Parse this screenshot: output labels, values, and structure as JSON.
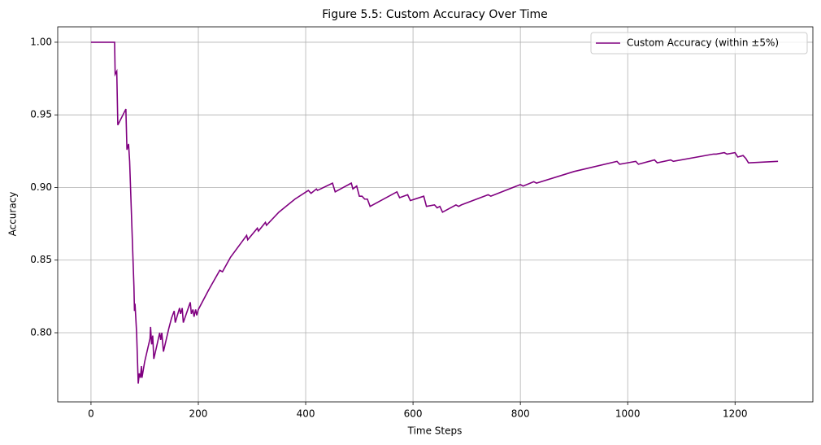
{
  "chart_data": {
    "type": "line",
    "title": "Figure 5.5: Custom Accuracy Over Time",
    "x_label": "Time Steps",
    "y_label": "Accuracy",
    "x": [
      0,
      44,
      45,
      48,
      50,
      65,
      67,
      70,
      72,
      80,
      81,
      82,
      85,
      88,
      90,
      92,
      94,
      95,
      100,
      110,
      111,
      113,
      115,
      117,
      122,
      128,
      130,
      132,
      135,
      145,
      150,
      155,
      157,
      165,
      167,
      170,
      172,
      185,
      187,
      190,
      192,
      195,
      197,
      200,
      220,
      240,
      245,
      260,
      280,
      290,
      292,
      310,
      312,
      325,
      327,
      350,
      380,
      405,
      410,
      420,
      422,
      450,
      455,
      470,
      485,
      488,
      495,
      500,
      505,
      510,
      515,
      520,
      540,
      570,
      575,
      590,
      595,
      620,
      625,
      640,
      645,
      650,
      655,
      680,
      685,
      690,
      740,
      745,
      800,
      805,
      825,
      830,
      900,
      980,
      985,
      1000,
      1015,
      1020,
      1050,
      1055,
      1080,
      1085,
      1160,
      1165,
      1180,
      1185,
      1200,
      1205,
      1215,
      1220,
      1225,
      1280
    ],
    "series": [
      {
        "name": "Custom Accuracy (within ±5%)",
        "color": "#800080",
        "values": [
          1.0,
          1.0,
          0.978,
          0.98,
          0.943,
          0.954,
          0.926,
          0.93,
          0.918,
          0.832,
          0.815,
          0.82,
          0.8,
          0.765,
          0.772,
          0.769,
          0.777,
          0.769,
          0.78,
          0.796,
          0.804,
          0.792,
          0.798,
          0.782,
          0.79,
          0.8,
          0.795,
          0.8,
          0.787,
          0.803,
          0.81,
          0.815,
          0.807,
          0.817,
          0.813,
          0.817,
          0.807,
          0.821,
          0.813,
          0.816,
          0.811,
          0.816,
          0.812,
          0.816,
          0.83,
          0.843,
          0.842,
          0.852,
          0.862,
          0.867,
          0.864,
          0.872,
          0.87,
          0.876,
          0.874,
          0.883,
          0.892,
          0.898,
          0.896,
          0.899,
          0.898,
          0.903,
          0.897,
          0.9,
          0.903,
          0.899,
          0.901,
          0.894,
          0.894,
          0.892,
          0.892,
          0.887,
          0.891,
          0.897,
          0.893,
          0.895,
          0.891,
          0.894,
          0.887,
          0.888,
          0.886,
          0.887,
          0.883,
          0.888,
          0.887,
          0.888,
          0.895,
          0.894,
          0.902,
          0.901,
          0.904,
          0.903,
          0.911,
          0.918,
          0.916,
          0.917,
          0.918,
          0.916,
          0.919,
          0.917,
          0.919,
          0.918,
          0.923,
          0.923,
          0.924,
          0.923,
          0.924,
          0.921,
          0.922,
          0.92,
          0.917,
          0.918
        ]
      }
    ],
    "xlim": [
      -62,
      1345
    ],
    "ylim": [
      0.7524,
      1.0106
    ],
    "xticks": [
      0,
      200,
      400,
      600,
      800,
      1000,
      1200
    ],
    "yticks": [
      {
        "value": 0.8,
        "label": "0.80"
      },
      0.85,
      {
        "value": 0.9,
        "label": "0.90"
      },
      0.95,
      {
        "value": 1.0,
        "label": "1.00"
      }
    ],
    "grid": true,
    "legend": "upper right"
  }
}
